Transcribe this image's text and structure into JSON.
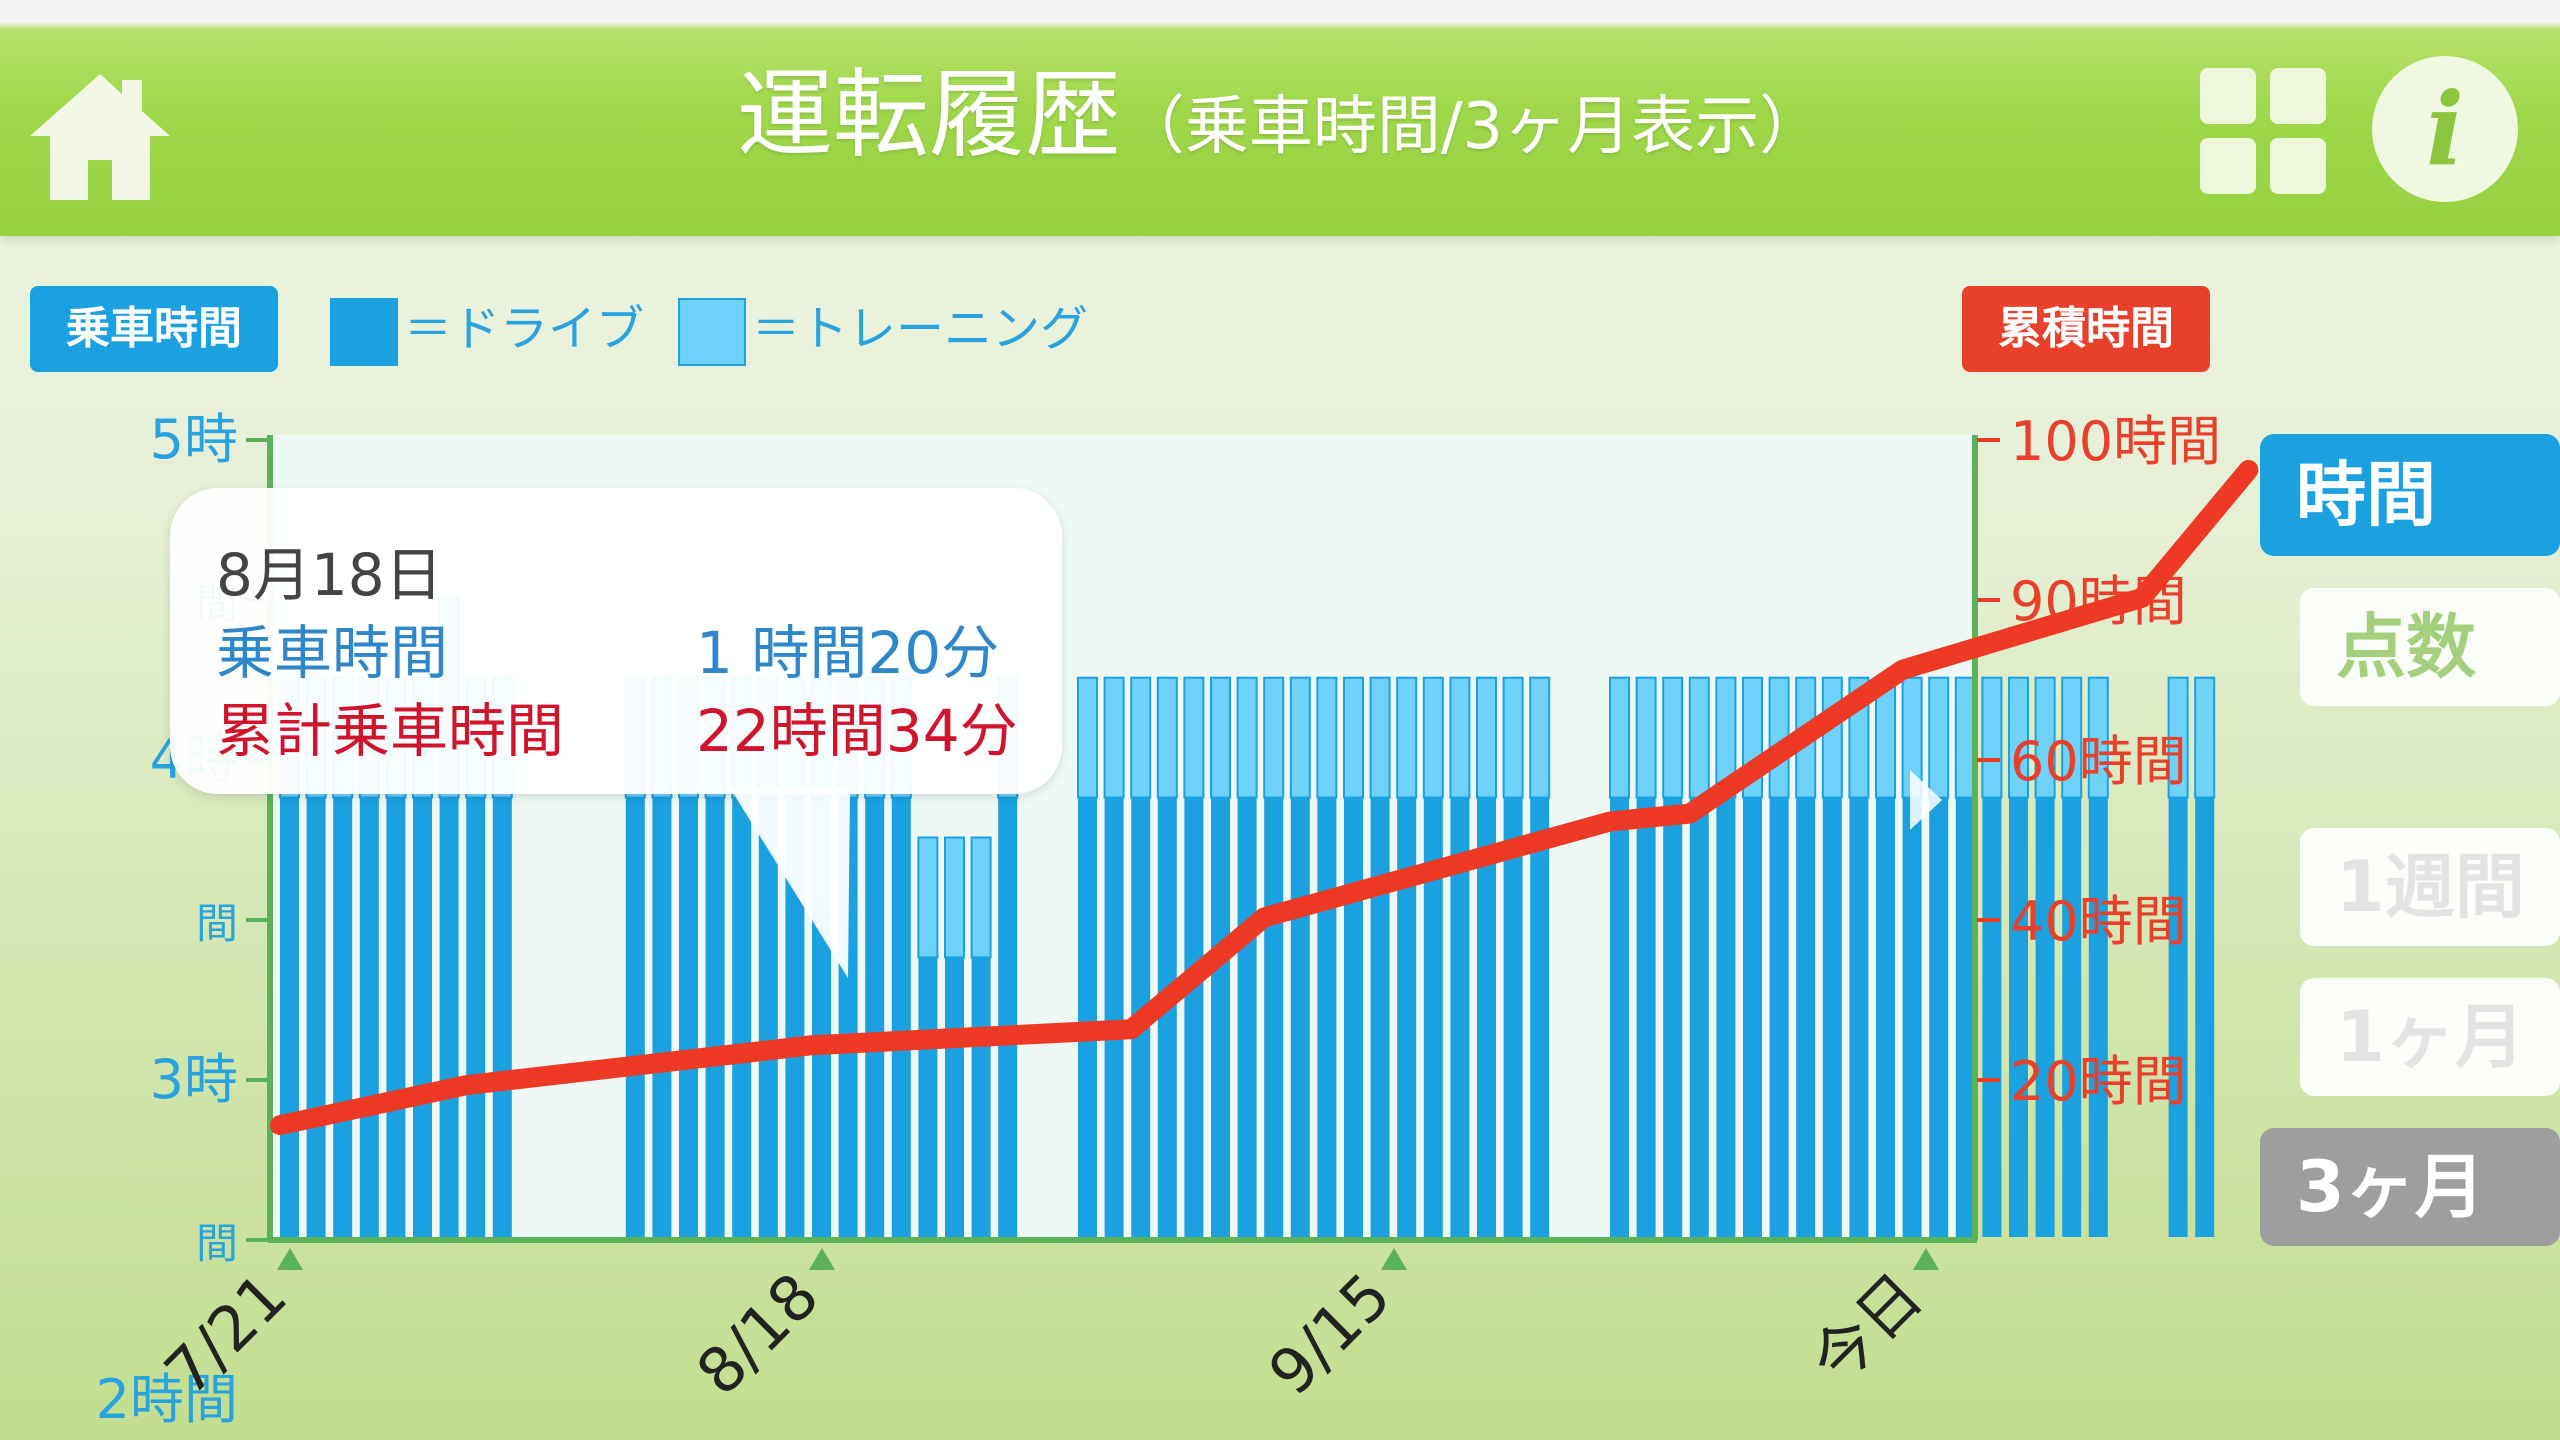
{
  "header": {
    "title": "運転履歴",
    "subtitle": "（乗車時間/3ヶ月表示）",
    "home_icon": "home-icon",
    "grid_icon": "grid-icon",
    "info_label": "i"
  },
  "left_badge": "乗車時間",
  "right_badge": "累積時間",
  "legend": {
    "drive": "＝ドライブ",
    "training": "＝トレーニング",
    "drive_color": "#1ba0e0",
    "training_color": "#6fd2fb"
  },
  "tooltip": {
    "date": "8月18日",
    "ride_label": "乗車時間",
    "ride_value": "1 時間20分",
    "total_label": "累計乗車時間",
    "total_value": "22時間34分"
  },
  "side_tabs": {
    "time": "時間",
    "score": "点数",
    "week": "1週間",
    "month": "1ヶ月",
    "three_month": "3ヶ月"
  },
  "chart_data": {
    "type": "bar",
    "left_axis_ticks": [
      "5時",
      "間",
      "4時",
      "間",
      "3時",
      "間",
      "2時間"
    ],
    "right_axis_ticks": [
      "100時間",
      "90時間",
      "60時間",
      "40時間",
      "20時間"
    ],
    "x_labels": [
      "7/21",
      "8/18",
      "9/15",
      "今日"
    ],
    "series": [
      {
        "name": "ドライブ",
        "values": [
          2.75,
          2.75,
          2.75,
          2.75,
          2.75,
          2.75,
          2.75,
          2.75,
          2.75,
          0,
          0,
          0,
          0,
          2.75,
          2.75,
          2.75,
          2.75,
          2.75,
          2.75,
          2.75,
          2.75,
          2.75,
          2.75,
          2.75,
          1.75,
          1.75,
          1.75,
          2.75,
          0,
          0,
          2.75,
          2.75,
          2.75,
          2.75,
          2.75,
          2.75,
          2.75,
          2.75,
          2.75,
          2.75,
          2.75,
          2.75,
          2.75,
          2.75,
          2.75,
          2.75,
          2.75,
          2.75,
          0,
          0,
          2.75,
          2.75,
          2.75,
          2.75,
          2.75,
          2.75,
          2.75,
          2.75,
          2.75,
          2.75,
          2.75,
          2.75,
          2.75,
          2.75,
          2.75,
          2.75,
          2.75,
          2.75,
          2.75,
          0,
          0,
          2.75,
          2.75
        ]
      },
      {
        "name": "トレーニング",
        "values": [
          0.75,
          0.75,
          0.75,
          0.75,
          0.75,
          0.75,
          1.25,
          0.75,
          0.75,
          0,
          0,
          0,
          0,
          0.75,
          0.75,
          0.75,
          0.75,
          0.75,
          0.75,
          0.75,
          0.75,
          0.75,
          0.75,
          0.75,
          0.75,
          0.75,
          0.75,
          0.75,
          0,
          0,
          0.75,
          0.75,
          0.75,
          0.75,
          0.75,
          0.75,
          0.75,
          0.75,
          0.75,
          0.75,
          0.75,
          0.75,
          0.75,
          0.75,
          0.75,
          0.75,
          0.75,
          0.75,
          0,
          0,
          0.75,
          0.75,
          0.75,
          0.75,
          0.75,
          0.75,
          0.75,
          0.75,
          0.75,
          0.75,
          0.75,
          0.75,
          0.75,
          0.75,
          0.75,
          0.75,
          0.75,
          0.75,
          0.75,
          0,
          0,
          0.75,
          0.75
        ]
      }
    ],
    "cumulative": {
      "name": "累積時間",
      "points": [
        [
          0,
          14
        ],
        [
          7,
          19
        ],
        [
          20,
          24
        ],
        [
          32,
          26
        ],
        [
          37,
          40
        ],
        [
          50,
          52
        ],
        [
          53,
          53
        ],
        [
          61,
          71
        ],
        [
          70,
          80
        ],
        [
          74,
          96
        ]
      ]
    }
  }
}
